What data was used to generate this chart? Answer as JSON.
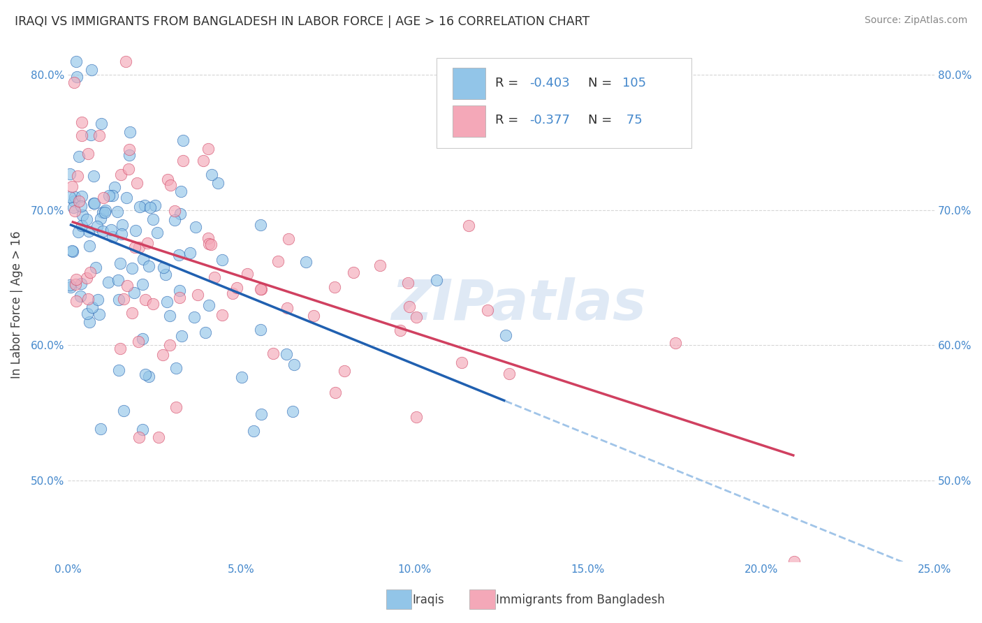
{
  "title": "IRAQI VS IMMIGRANTS FROM BANGLADESH IN LABOR FORCE | AGE > 16 CORRELATION CHART",
  "source": "Source: ZipAtlas.com",
  "ylabel": "In Labor Force | Age > 16",
  "xlim": [
    0.0,
    0.25
  ],
  "ylim": [
    0.44,
    0.82
  ],
  "xticks": [
    0.0,
    0.05,
    0.1,
    0.15,
    0.2,
    0.25
  ],
  "xticklabels": [
    "0.0%",
    "5.0%",
    "10.0%",
    "15.0%",
    "20.0%",
    "25.0%"
  ],
  "yticks": [
    0.5,
    0.6,
    0.7,
    0.8
  ],
  "yticklabels": [
    "50.0%",
    "60.0%",
    "70.0%",
    "80.0%"
  ],
  "legend_r1": "R = -0.403",
  "legend_n1": "N = 105",
  "legend_r2": "R = -0.377",
  "legend_n2": "N =  75",
  "color_iraqi": "#92C5E8",
  "color_bangladesh": "#F4A8B8",
  "color_line_iraqi": "#2060B0",
  "color_line_bangladesh": "#D04060",
  "color_dashed": "#A0C4E8",
  "title_color": "#303030",
  "axis_tick_color": "#4488CC",
  "label_color": "#404040",
  "watermark_color": "#C5D8EE",
  "watermark": "ZIPatlas",
  "legend_text_color": "#4488CC",
  "legend_r_color": "#303030",
  "grid_color": "#CCCCCC"
}
